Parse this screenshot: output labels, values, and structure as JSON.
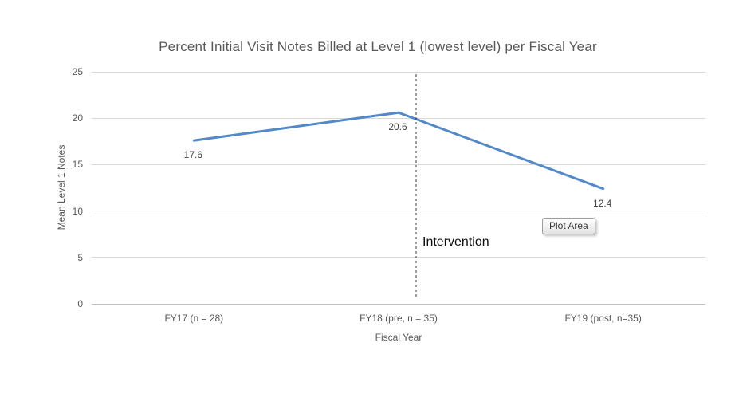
{
  "colors": {
    "series_line": "#5489c8",
    "gridline": "#d9d9d9",
    "axis_line": "#bfbfbf",
    "muted_text": "#595959",
    "data_label_text": "#404040",
    "dashed_line": "#3a3a3a"
  },
  "chart_data": {
    "type": "line",
    "title": "Percent Initial Visit Notes Billed at Level 1 (lowest level) per Fiscal Year",
    "xlabel": "Fiscal Year",
    "ylabel": "Mean Level 1 Notes",
    "categories": [
      "FY17 (n = 28)",
      "FY18 (pre, n = 35)",
      "FY19 (post, n=35)"
    ],
    "series": [
      {
        "name": "Mean Level 1 Notes",
        "values": [
          17.6,
          20.6,
          12.4
        ]
      }
    ],
    "data_labels": [
      "17.6",
      "20.6",
      "12.4"
    ],
    "ylim": [
      0,
      25
    ],
    "ytick_interval": 5,
    "yticks": [
      0,
      5,
      10,
      15,
      20,
      25
    ],
    "grid": true,
    "legend": "none",
    "annotations": [
      {
        "type": "dashed-vline",
        "label": "Intervention",
        "between": "FY18 and FY19, just right of FY18 point"
      }
    ]
  },
  "tooltip": {
    "text": "Plot Area"
  }
}
